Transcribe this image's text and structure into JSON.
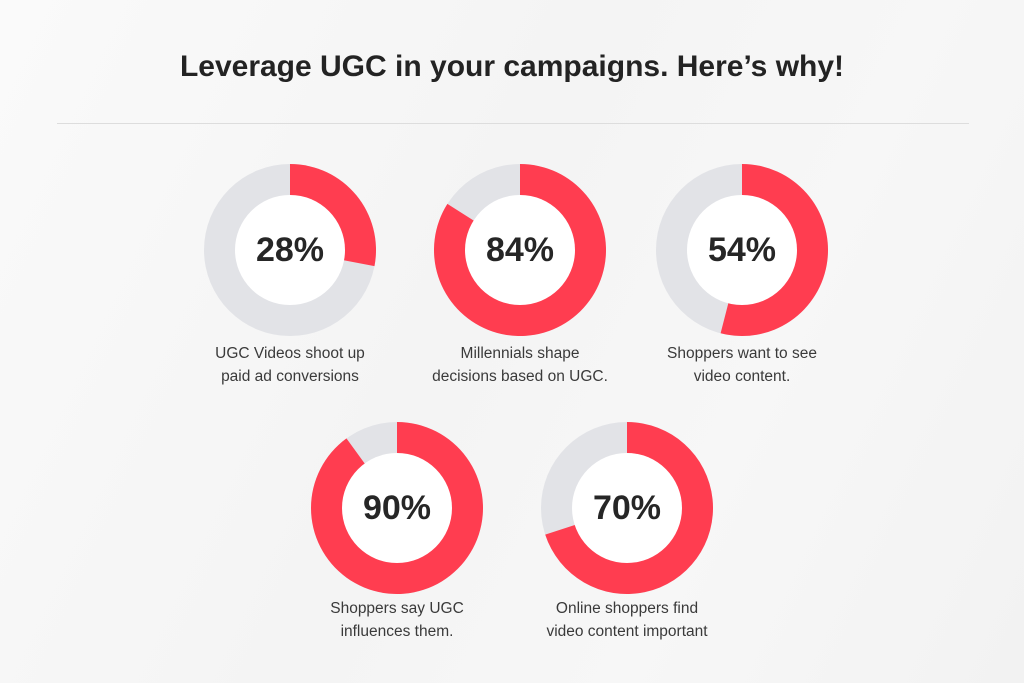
{
  "title": "Leverage UGC in your campaigns. Here’s why!",
  "colors": {
    "accent": "#ff3d50",
    "track": "#e2e3e7",
    "inner": "#ffffff",
    "text": "#262626"
  },
  "stats": [
    {
      "label": "28%",
      "value": 28,
      "caption_line1": "UGC Videos shoot up",
      "caption_line2": "paid ad conversions"
    },
    {
      "label": "84%",
      "value": 84,
      "caption_line1": "Millennials shape",
      "caption_line2": "decisions based on UGC."
    },
    {
      "label": "54%",
      "value": 54,
      "caption_line1": "Shoppers want to see",
      "caption_line2": "video content."
    },
    {
      "label": "90%",
      "value": 90,
      "caption_line1": "Shoppers say UGC",
      "caption_line2": "influences them."
    },
    {
      "label": "70%",
      "value": 70,
      "caption_line1": "Online shoppers find",
      "caption_line2": "video content important"
    }
  ],
  "chart_data": {
    "type": "pie",
    "variant": "donut",
    "title": "Leverage UGC in your campaigns. Here’s why!",
    "categories": [
      "UGC Videos shoot up paid ad conversions",
      "Millennials shape decisions based on UGC.",
      "Shoppers want to see video content.",
      "Shoppers say UGC influences them.",
      "Online shoppers find video content important"
    ],
    "values": [
      28,
      84,
      54,
      90,
      70
    ],
    "unit": "%",
    "layout": "five separate donut charts, 3 on top row, 2 on bottom row"
  }
}
